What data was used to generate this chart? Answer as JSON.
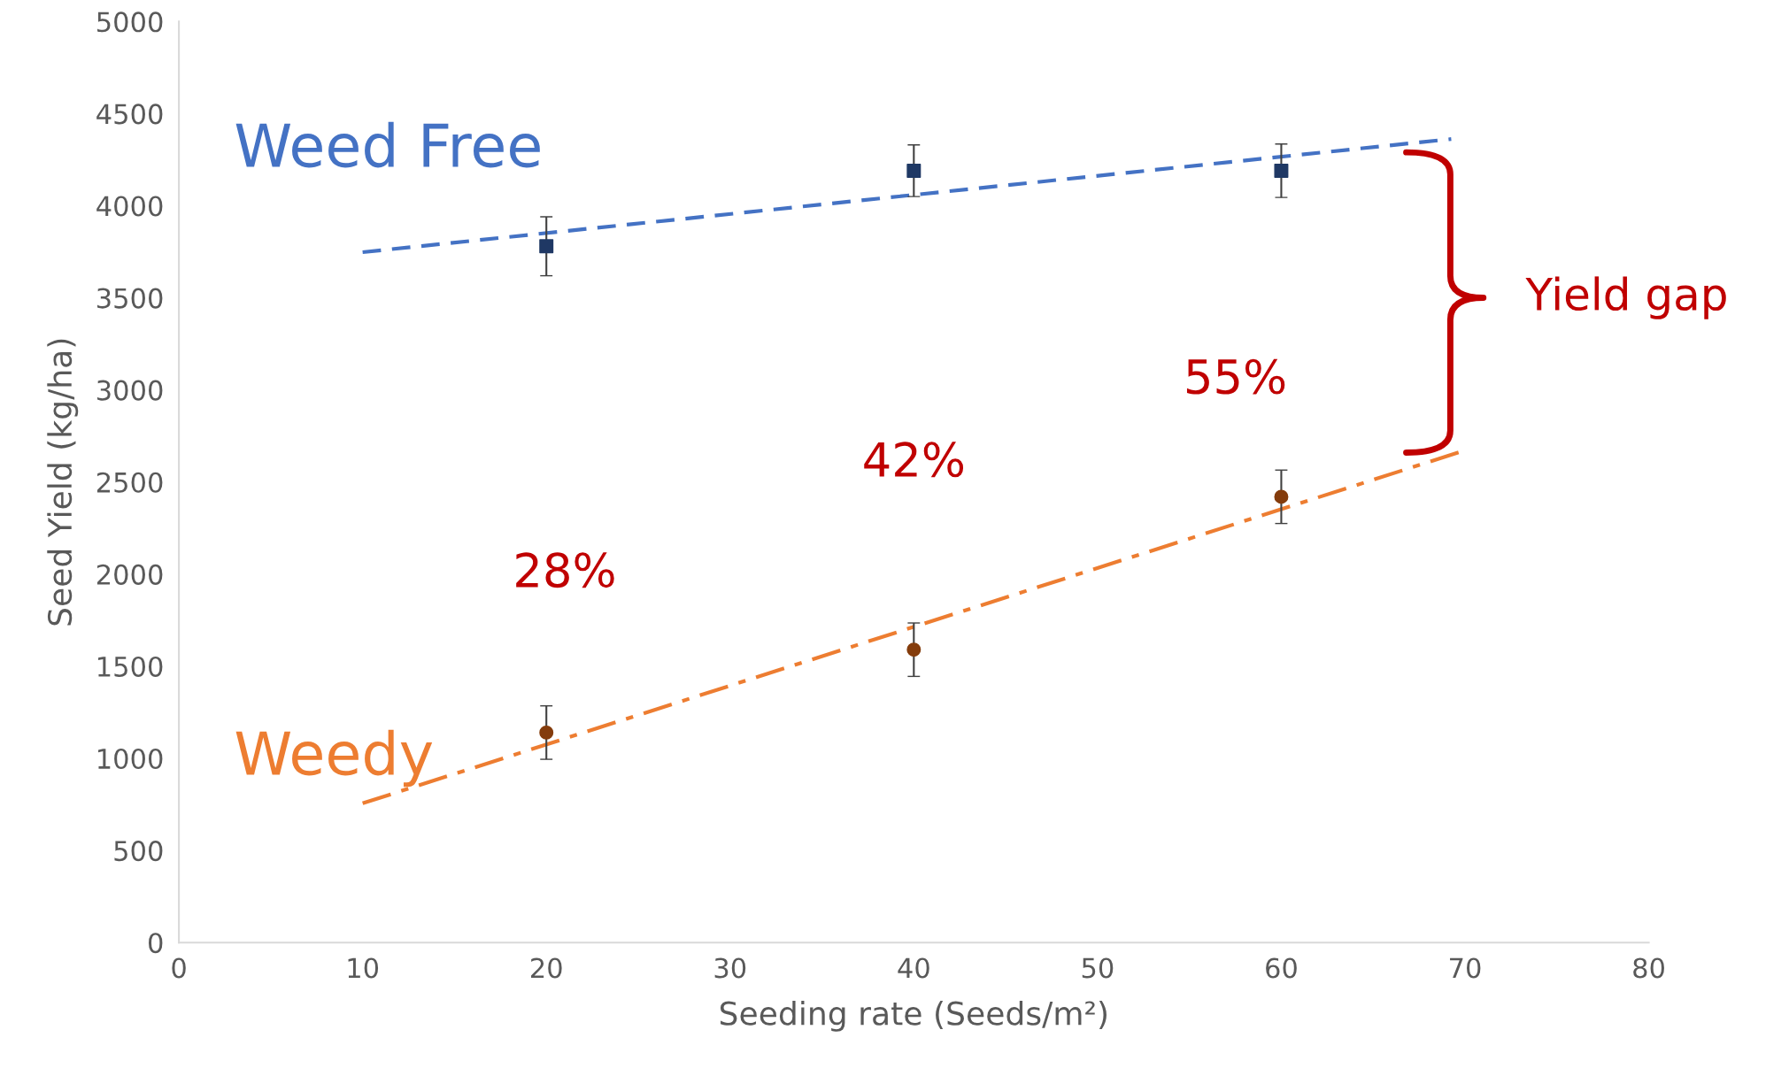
{
  "chart_data": {
    "type": "scatter",
    "xlabel": "Seeding rate (Seeds/m²)",
    "ylabel": "Seed Yield (kg/ha)",
    "xlim": [
      0,
      80
    ],
    "xticks": [
      0,
      10,
      20,
      30,
      40,
      50,
      60,
      70,
      80
    ],
    "ylim": [
      0,
      5000
    ],
    "yticks": [
      0,
      500,
      1000,
      1500,
      2000,
      2500,
      3000,
      3500,
      4000,
      4500,
      5000
    ],
    "grid": false,
    "legend": false,
    "series": [
      {
        "name": "Weed Free",
        "marker": "square",
        "color": "#1f3864",
        "x": [
          20,
          40,
          60
        ],
        "values": [
          3780,
          4190,
          4190
        ],
        "errors": [
          160,
          140,
          145
        ]
      },
      {
        "name": "Weedy",
        "marker": "circle",
        "color": "#843c0c",
        "x": [
          20,
          40,
          60
        ],
        "values": [
          1140,
          1590,
          2420
        ],
        "errors": [
          145,
          145,
          145
        ]
      },
      {
        "type": "line",
        "color": "#4472c4",
        "line_style": "dashed",
        "marker": "none",
        "x": [
          10,
          69.25
        ],
        "values": [
          3748,
          4362
        ]
      },
      {
        "type": "line",
        "color": "#ed7d31",
        "line_style": "dashdot",
        "marker": "none",
        "x": [
          10,
          69.75
        ],
        "values": [
          756,
          2664
        ]
      }
    ],
    "annotations": [
      "28%",
      "42%",
      "55%",
      "Yield gap"
    ]
  }
}
